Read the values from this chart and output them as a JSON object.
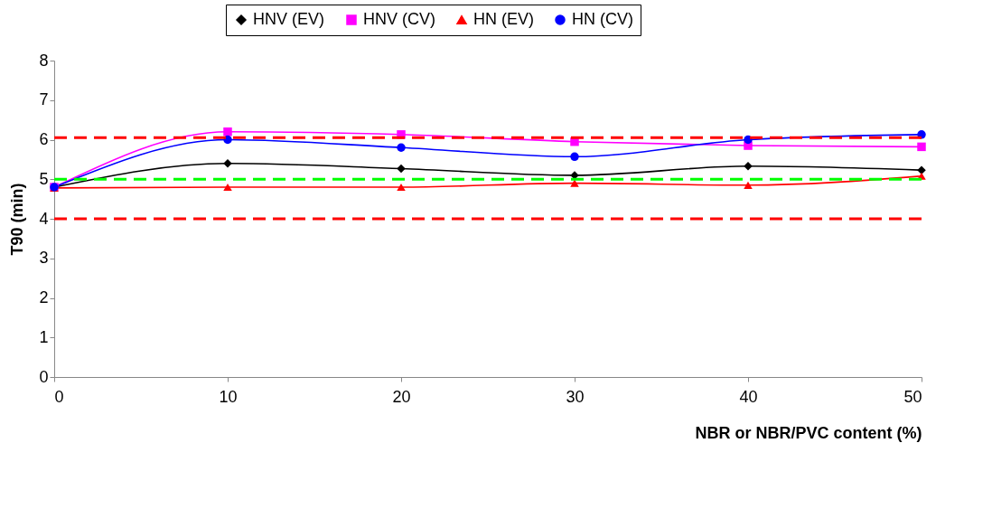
{
  "chart_data": {
    "type": "line",
    "xlabel": "NBR or NBR/PVC content (%)",
    "ylabel": "T90 (min)",
    "x": [
      0,
      10,
      20,
      30,
      40,
      50
    ],
    "xlim": [
      0,
      50
    ],
    "xticks": [
      0,
      10,
      20,
      30,
      40,
      50
    ],
    "ylim": [
      0,
      8
    ],
    "yticks": [
      0,
      1,
      2,
      3,
      4,
      5,
      6,
      7,
      8
    ],
    "grid": false,
    "legend": "top",
    "series": [
      {
        "name": "HNV (EV)",
        "color": "#000000",
        "marker": "diamond",
        "values": [
          4.8,
          5.4,
          5.27,
          5.1,
          5.33,
          5.23
        ]
      },
      {
        "name": "HNV (CV)",
        "color": "#ff00ff",
        "marker": "square",
        "values": [
          4.8,
          6.2,
          6.13,
          5.95,
          5.85,
          5.82
        ]
      },
      {
        "name": "HN (EV)",
        "color": "#ff0000",
        "marker": "triangle",
        "values": [
          4.78,
          4.8,
          4.8,
          4.9,
          4.85,
          5.08
        ]
      },
      {
        "name": "HN (CV)",
        "color": "#0000ff",
        "marker": "circle",
        "values": [
          4.8,
          6.0,
          5.8,
          5.57,
          6.0,
          6.13
        ]
      }
    ],
    "ref_lines": [
      {
        "axis": "y",
        "value": 6.05,
        "color": "#ff0000",
        "line_style": "dashed"
      },
      {
        "axis": "y",
        "value": 5.0,
        "color": "#00ff00",
        "line_style": "dashed"
      },
      {
        "axis": "y",
        "value": 4.0,
        "color": "#ff0000",
        "line_style": "dashed"
      }
    ]
  }
}
